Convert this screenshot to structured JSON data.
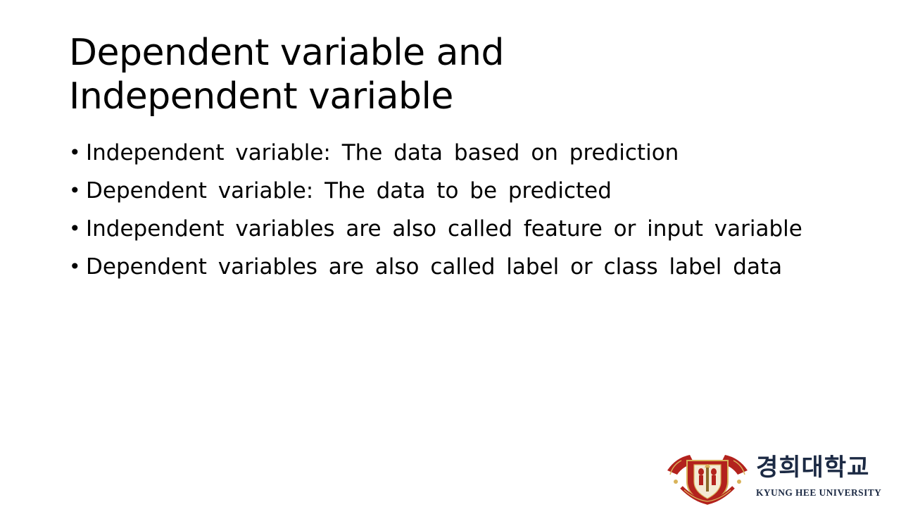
{
  "slide": {
    "title_line1": "Dependent variable and",
    "title_line2": "Independent variable",
    "bullet_char": "•",
    "bullets": [
      "Independent variable: The data based on prediction",
      "Dependent variable: The data to be predicted",
      "Independent variables are also called feature or input variable",
      "Dependent variables are also called label or class label data"
    ]
  },
  "logo": {
    "name_korean": "경희대학교",
    "name_english": "KYUNG HEE UNIVERSITY",
    "emblem_icon": "kyung-hee-emblem-icon",
    "colors": {
      "emblem_red": "#b3221d",
      "emblem_gold": "#d9b35a",
      "text_navy": "#1c2a44"
    }
  }
}
